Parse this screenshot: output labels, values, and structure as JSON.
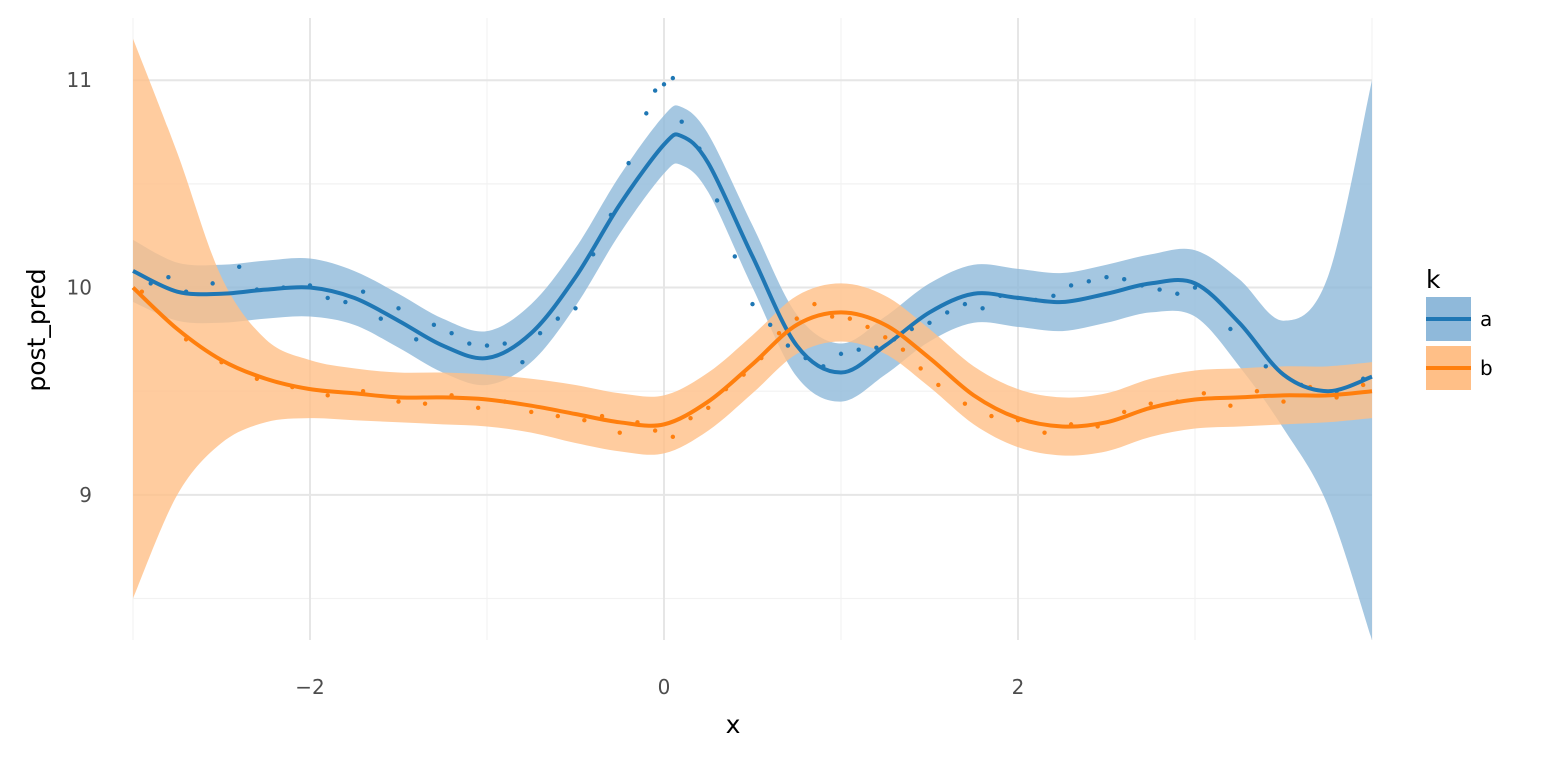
{
  "chart_data": {
    "type": "line",
    "title": "",
    "xlabel": "x",
    "ylabel": "post_pred",
    "xlim": [
      -3,
      4
    ],
    "ylim": [
      8.3,
      11.3
    ],
    "x_ticks": [
      -2,
      0,
      2
    ],
    "x_tick_labels": [
      "−2",
      "0",
      "2"
    ],
    "y_ticks": [
      9,
      10,
      11
    ],
    "y_tick_labels": [
      "9",
      "10",
      "11"
    ],
    "grid": true,
    "legend": {
      "title": "k",
      "placement": "right"
    },
    "series": [
      {
        "name": "a",
        "color": "#1f77b4",
        "band_color": "#8fb9da",
        "x": [
          -3.0,
          -2.75,
          -2.5,
          -2.25,
          -2.0,
          -1.75,
          -1.5,
          -1.25,
          -1.0,
          -0.75,
          -0.5,
          -0.25,
          0.0,
          0.1,
          0.25,
          0.5,
          0.75,
          1.0,
          1.25,
          1.5,
          1.75,
          2.0,
          2.25,
          2.5,
          2.75,
          3.0,
          3.25,
          3.5,
          3.75,
          4.0
        ],
        "mean": [
          10.08,
          9.98,
          9.97,
          9.99,
          10.0,
          9.95,
          9.84,
          9.72,
          9.66,
          9.78,
          10.05,
          10.4,
          10.69,
          10.73,
          10.6,
          10.15,
          9.72,
          9.59,
          9.72,
          9.88,
          9.97,
          9.95,
          9.93,
          9.97,
          10.02,
          10.02,
          9.83,
          9.58,
          9.5,
          9.57
        ],
        "lower": [
          9.93,
          9.84,
          9.83,
          9.85,
          9.86,
          9.82,
          9.71,
          9.59,
          9.53,
          9.64,
          9.91,
          10.26,
          10.55,
          10.59,
          10.46,
          10.0,
          9.57,
          9.45,
          9.58,
          9.74,
          9.83,
          9.81,
          9.79,
          9.83,
          9.88,
          9.86,
          9.62,
          9.32,
          8.95,
          8.3
        ],
        "upper": [
          10.23,
          10.12,
          10.11,
          10.13,
          10.14,
          10.08,
          9.97,
          9.85,
          9.79,
          9.92,
          10.19,
          10.54,
          10.83,
          10.87,
          10.74,
          10.3,
          9.87,
          9.73,
          9.86,
          10.02,
          10.11,
          10.09,
          10.07,
          10.11,
          10.16,
          10.18,
          10.04,
          9.84,
          10.05,
          11.0
        ],
        "points_x": [
          -2.9,
          -2.8,
          -2.7,
          -2.55,
          -2.4,
          -2.3,
          -2.15,
          -2.0,
          -1.9,
          -1.8,
          -1.7,
          -1.6,
          -1.5,
          -1.4,
          -1.3,
          -1.2,
          -1.1,
          -1.0,
          -0.9,
          -0.8,
          -0.7,
          -0.6,
          -0.5,
          -0.4,
          -0.3,
          -0.2,
          -0.1,
          -0.05,
          0.0,
          0.05,
          0.1,
          0.2,
          0.3,
          0.4,
          0.5,
          0.6,
          0.7,
          0.8,
          0.9,
          1.0,
          1.1,
          1.2,
          1.3,
          1.4,
          1.5,
          1.6,
          1.7,
          1.8,
          1.9,
          2.0,
          2.1,
          2.2,
          2.3,
          2.4,
          2.5,
          2.6,
          2.7,
          2.8,
          2.9,
          3.0,
          3.2,
          3.4,
          3.6,
          3.8,
          3.95
        ],
        "points_y": [
          10.02,
          10.05,
          9.98,
          10.02,
          10.1,
          9.99,
          10.0,
          10.01,
          9.95,
          9.93,
          9.98,
          9.85,
          9.9,
          9.75,
          9.82,
          9.78,
          9.73,
          9.72,
          9.73,
          9.64,
          9.78,
          9.85,
          9.9,
          10.16,
          10.35,
          10.6,
          10.84,
          10.95,
          10.98,
          11.01,
          10.8,
          10.67,
          10.42,
          10.15,
          9.92,
          9.82,
          9.72,
          9.66,
          9.62,
          9.68,
          9.7,
          9.71,
          9.75,
          9.8,
          9.83,
          9.88,
          9.92,
          9.9,
          9.96,
          9.95,
          9.94,
          9.96,
          10.01,
          10.03,
          10.05,
          10.04,
          10.01,
          9.99,
          9.97,
          10.0,
          9.8,
          9.62,
          9.53,
          9.5,
          9.56
        ]
      },
      {
        "name": "b",
        "color": "#ff7f0e",
        "band_color": "#ffbf87",
        "x": [
          -3.0,
          -2.75,
          -2.5,
          -2.25,
          -2.0,
          -1.75,
          -1.5,
          -1.25,
          -1.0,
          -0.75,
          -0.5,
          -0.25,
          0.0,
          0.25,
          0.5,
          0.75,
          1.0,
          1.25,
          1.5,
          1.75,
          2.0,
          2.25,
          2.5,
          2.75,
          3.0,
          3.25,
          3.5,
          3.75,
          4.0
        ],
        "mean": [
          10.0,
          9.8,
          9.65,
          9.56,
          9.51,
          9.49,
          9.47,
          9.47,
          9.46,
          9.43,
          9.39,
          9.35,
          9.34,
          9.45,
          9.63,
          9.82,
          9.88,
          9.82,
          9.66,
          9.48,
          9.37,
          9.33,
          9.35,
          9.42,
          9.46,
          9.47,
          9.48,
          9.48,
          9.5
        ],
        "lower": [
          8.5,
          9.0,
          9.25,
          9.35,
          9.37,
          9.36,
          9.35,
          9.34,
          9.33,
          9.3,
          9.25,
          9.21,
          9.2,
          9.31,
          9.49,
          9.68,
          9.74,
          9.68,
          9.52,
          9.34,
          9.23,
          9.19,
          9.21,
          9.28,
          9.32,
          9.33,
          9.34,
          9.35,
          9.37
        ],
        "upper": [
          11.2,
          10.65,
          10.05,
          9.75,
          9.65,
          9.61,
          9.59,
          9.59,
          9.58,
          9.56,
          9.53,
          9.49,
          9.48,
          9.59,
          9.77,
          9.96,
          10.02,
          9.96,
          9.8,
          9.62,
          9.51,
          9.47,
          9.49,
          9.56,
          9.6,
          9.61,
          9.62,
          9.62,
          9.64
        ],
        "points_x": [
          -2.95,
          -2.7,
          -2.5,
          -2.3,
          -2.1,
          -1.9,
          -1.7,
          -1.5,
          -1.35,
          -1.2,
          -1.05,
          -0.9,
          -0.75,
          -0.6,
          -0.45,
          -0.35,
          -0.25,
          -0.15,
          -0.05,
          0.05,
          0.15,
          0.25,
          0.35,
          0.45,
          0.55,
          0.65,
          0.75,
          0.85,
          0.95,
          1.05,
          1.15,
          1.25,
          1.35,
          1.45,
          1.55,
          1.7,
          1.85,
          2.0,
          2.15,
          2.3,
          2.45,
          2.6,
          2.75,
          2.9,
          3.05,
          3.2,
          3.35,
          3.5,
          3.65,
          3.8,
          3.95
        ],
        "points_y": [
          9.98,
          9.75,
          9.64,
          9.56,
          9.52,
          9.48,
          9.5,
          9.45,
          9.44,
          9.48,
          9.42,
          9.45,
          9.4,
          9.38,
          9.36,
          9.38,
          9.3,
          9.35,
          9.31,
          9.28,
          9.37,
          9.42,
          9.51,
          9.58,
          9.66,
          9.78,
          9.85,
          9.92,
          9.86,
          9.85,
          9.81,
          9.76,
          9.7,
          9.61,
          9.53,
          9.44,
          9.38,
          9.36,
          9.3,
          9.34,
          9.33,
          9.4,
          9.44,
          9.45,
          9.49,
          9.43,
          9.5,
          9.45,
          9.52,
          9.47,
          9.53
        ]
      }
    ]
  }
}
